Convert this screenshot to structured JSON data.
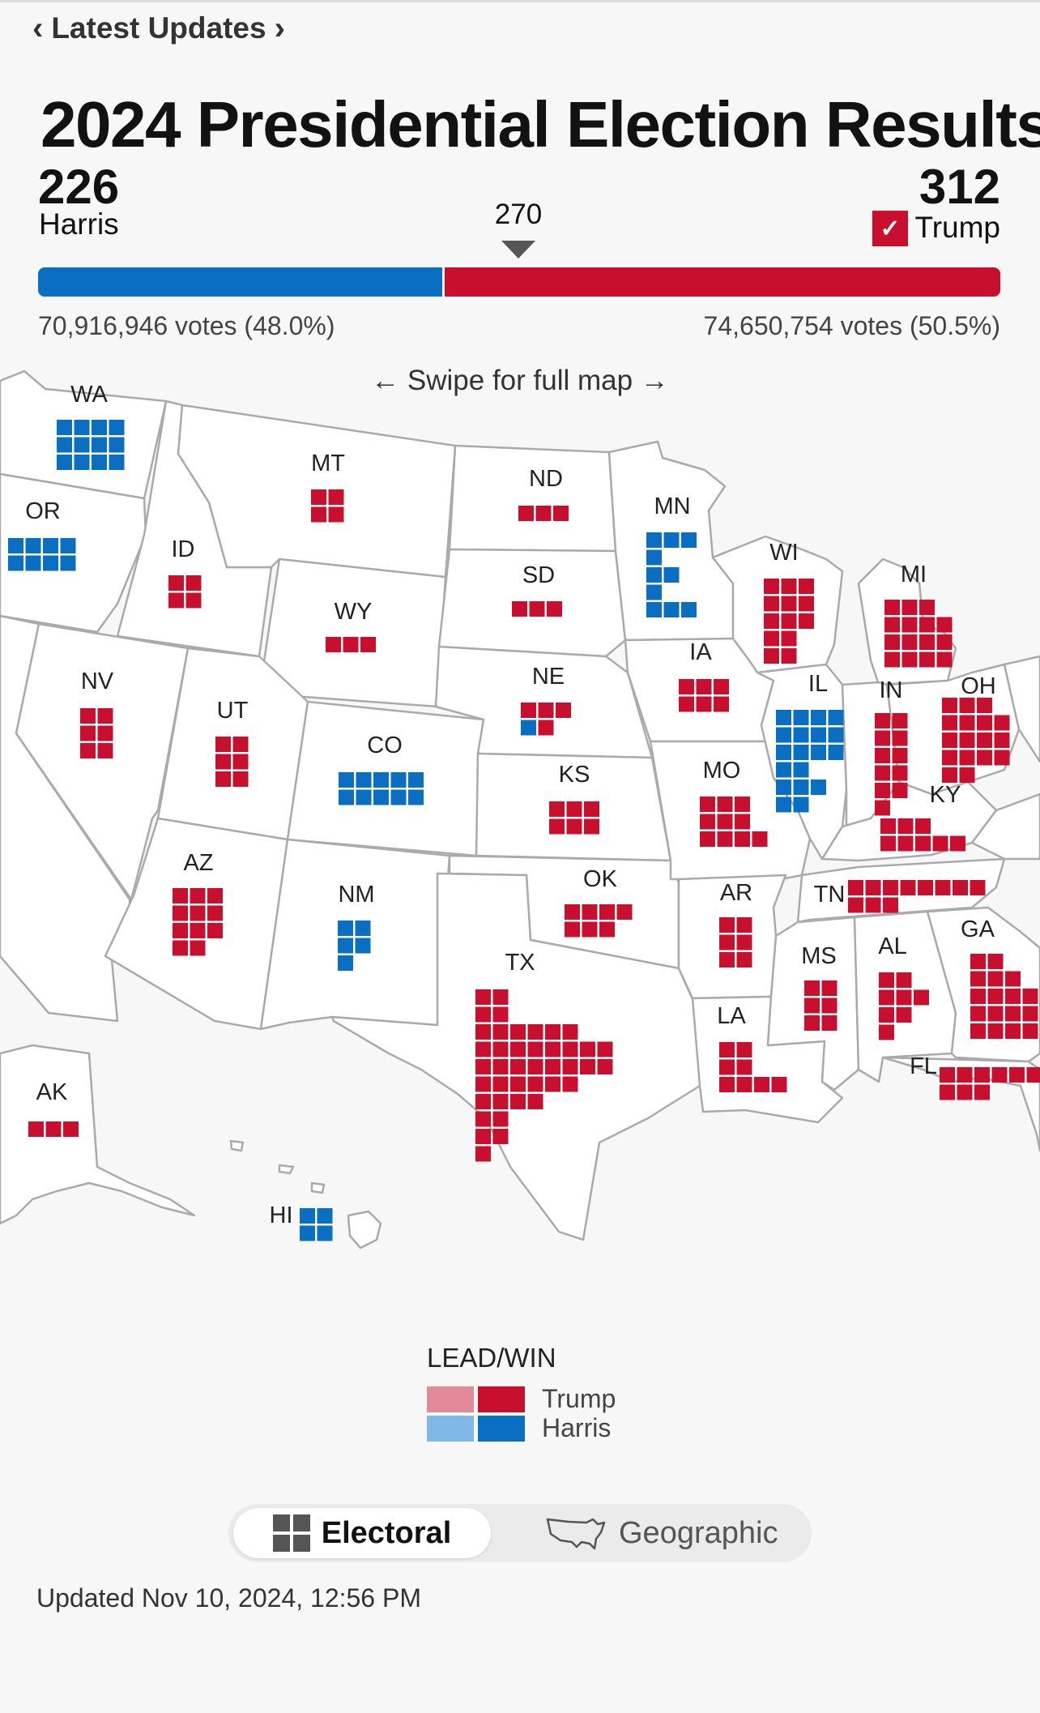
{
  "nav": {
    "label": "Latest Updates"
  },
  "title": "2024 Presidential Election Results",
  "candidates": {
    "harris": {
      "name": "Harris",
      "electoral": "226",
      "votes_text": "70,916,946 votes (48.0%)",
      "electoral_value": 226,
      "color": "#0a6fc2"
    },
    "trump": {
      "name": "Trump",
      "electoral": "312",
      "votes_text": "74,650,754 votes (50.5%)",
      "electoral_value": 312,
      "color": "#c8102e",
      "winner": true
    }
  },
  "threshold": "270",
  "swipe_hint": "← Swipe for full map →",
  "map": {
    "states": [
      {
        "abbr": "WA",
        "ev": 12,
        "party": "D"
      },
      {
        "abbr": "OR",
        "ev": 8,
        "party": "D"
      },
      {
        "abbr": "ID",
        "ev": 4,
        "party": "R"
      },
      {
        "abbr": "MT",
        "ev": 4,
        "party": "R"
      },
      {
        "abbr": "ND",
        "ev": 3,
        "party": "R"
      },
      {
        "abbr": "MN",
        "ev": 10,
        "party": "D"
      },
      {
        "abbr": "WI",
        "ev": 10,
        "party": "R"
      },
      {
        "abbr": "MI",
        "ev": 15,
        "party": "R"
      },
      {
        "abbr": "SD",
        "ev": 3,
        "party": "R"
      },
      {
        "abbr": "WY",
        "ev": 3,
        "party": "R"
      },
      {
        "abbr": "NV",
        "ev": 6,
        "party": "R"
      },
      {
        "abbr": "UT",
        "ev": 6,
        "party": "R"
      },
      {
        "abbr": "CO",
        "ev": 10,
        "party": "D"
      },
      {
        "abbr": "NE",
        "ev": 5,
        "party": "R",
        "split": "4 R, 1 D"
      },
      {
        "abbr": "IA",
        "ev": 6,
        "party": "R"
      },
      {
        "abbr": "IL",
        "ev": 19,
        "party": "D"
      },
      {
        "abbr": "IN",
        "ev": 11,
        "party": "R"
      },
      {
        "abbr": "OH",
        "ev": 17,
        "party": "R"
      },
      {
        "abbr": "KS",
        "ev": 6,
        "party": "R"
      },
      {
        "abbr": "MO",
        "ev": 10,
        "party": "R"
      },
      {
        "abbr": "KY",
        "ev": 8,
        "party": "R"
      },
      {
        "abbr": "AZ",
        "ev": 11,
        "party": "R"
      },
      {
        "abbr": "NM",
        "ev": 5,
        "party": "D"
      },
      {
        "abbr": "OK",
        "ev": 7,
        "party": "R"
      },
      {
        "abbr": "AR",
        "ev": 6,
        "party": "R"
      },
      {
        "abbr": "TN",
        "ev": 11,
        "party": "R"
      },
      {
        "abbr": "TX",
        "ev": 40,
        "party": "R"
      },
      {
        "abbr": "MS",
        "ev": 6,
        "party": "R"
      },
      {
        "abbr": "AL",
        "ev": 9,
        "party": "R"
      },
      {
        "abbr": "GA",
        "ev": 16,
        "party": "R"
      },
      {
        "abbr": "LA",
        "ev": 8,
        "party": "R"
      },
      {
        "abbr": "FL",
        "ev": 30,
        "party": "R"
      },
      {
        "abbr": "AK",
        "ev": 3,
        "party": "R"
      },
      {
        "abbr": "HI",
        "ev": 4,
        "party": "D"
      }
    ],
    "colors": {
      "trump_win": "#c8102e",
      "trump_lead": "#e28a9a",
      "harris_win": "#0a6fc2",
      "harris_lead": "#7fb9e8",
      "land": "#ffffff",
      "border": "#aaaaaa"
    }
  },
  "legend": {
    "title": "LEAD/WIN",
    "trump": "Trump",
    "harris": "Harris"
  },
  "view_toggle": {
    "electoral": "Electoral",
    "geographic": "Geographic",
    "active": "Electoral"
  },
  "updated": "Updated Nov 10, 2024, 12:56 PM"
}
